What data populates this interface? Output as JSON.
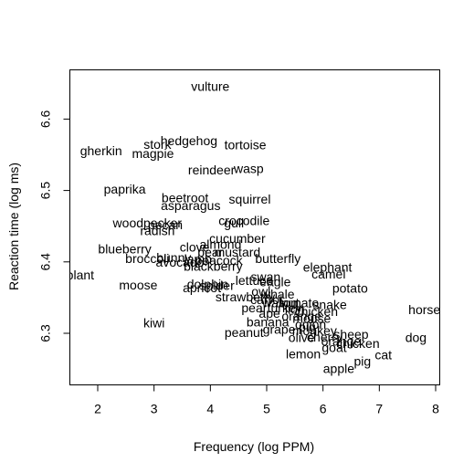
{
  "chart_data": {
    "type": "scatter",
    "title": "",
    "xlabel": "Frequency (log PPM)",
    "ylabel": "Reaction time (log ms)",
    "xlim": [
      1.5,
      8.0
    ],
    "ylim": [
      6.22,
      6.67
    ],
    "xticks": [
      "2",
      "3",
      "4",
      "5",
      "6",
      "7",
      "8"
    ],
    "yticks": [
      "6.3",
      "6.4",
      "6.5",
      "6.6"
    ],
    "marker": "word-text",
    "grid": false,
    "points": [
      {
        "label": "vulture",
        "x": 4.0,
        "y": 6.646
      },
      {
        "label": "hedgehog",
        "x": 3.62,
        "y": 6.57
      },
      {
        "label": "stork",
        "x": 3.06,
        "y": 6.565
      },
      {
        "label": "gherkin",
        "x": 2.06,
        "y": 6.556
      },
      {
        "label": "magpie",
        "x": 2.98,
        "y": 6.552
      },
      {
        "label": "tortoise",
        "x": 4.62,
        "y": 6.564
      },
      {
        "label": "reindeer",
        "x": 4.02,
        "y": 6.529
      },
      {
        "label": "wasp",
        "x": 4.68,
        "y": 6.531
      },
      {
        "label": "paprika",
        "x": 2.48,
        "y": 6.502
      },
      {
        "label": "beetroot",
        "x": 3.55,
        "y": 6.49
      },
      {
        "label": "squirrel",
        "x": 4.7,
        "y": 6.488
      },
      {
        "label": "asparagus",
        "x": 3.65,
        "y": 6.479
      },
      {
        "label": "crocodile",
        "x": 4.6,
        "y": 6.458
      },
      {
        "label": "gull",
        "x": 4.42,
        "y": 6.455
      },
      {
        "label": "woodpecker",
        "x": 2.88,
        "y": 6.455
      },
      {
        "label": "pecan",
        "x": 3.2,
        "y": 6.452
      },
      {
        "label": "radish",
        "x": 3.06,
        "y": 6.444
      },
      {
        "label": "cucumber",
        "x": 4.48,
        "y": 6.433
      },
      {
        "label": "almond",
        "x": 4.18,
        "y": 6.425
      },
      {
        "label": "clove",
        "x": 3.72,
        "y": 6.421
      },
      {
        "label": "blueberry",
        "x": 2.48,
        "y": 6.418
      },
      {
        "label": "pear",
        "x": 4.0,
        "y": 6.414
      },
      {
        "label": "mustard",
        "x": 4.48,
        "y": 6.414
      },
      {
        "label": "broccoli",
        "x": 2.88,
        "y": 6.405
      },
      {
        "label": "bunny",
        "x": 3.35,
        "y": 6.406
      },
      {
        "label": "lamb",
        "x": 3.78,
        "y": 6.404
      },
      {
        "label": "peacock",
        "x": 4.15,
        "y": 6.402
      },
      {
        "label": "butterfly",
        "x": 5.2,
        "y": 6.405
      },
      {
        "label": "avocado",
        "x": 3.46,
        "y": 6.4
      },
      {
        "label": "blackberry",
        "x": 4.05,
        "y": 6.394
      },
      {
        "label": "elephant",
        "x": 6.08,
        "y": 6.393
      },
      {
        "label": "camel",
        "x": 6.1,
        "y": 6.383
      },
      {
        "label": "eggplant",
        "x": 1.5,
        "y": 6.382
      },
      {
        "label": "swan",
        "x": 4.98,
        "y": 6.379
      },
      {
        "label": "lettuce",
        "x": 4.78,
        "y": 6.374
      },
      {
        "label": "eagle",
        "x": 5.15,
        "y": 6.372
      },
      {
        "label": "moose",
        "x": 2.72,
        "y": 6.368
      },
      {
        "label": "dolphin",
        "x": 3.95,
        "y": 6.369
      },
      {
        "label": "spider",
        "x": 4.12,
        "y": 6.367
      },
      {
        "label": "apricot",
        "x": 3.85,
        "y": 6.364
      },
      {
        "label": "potato",
        "x": 6.48,
        "y": 6.363
      },
      {
        "label": "owl",
        "x": 4.9,
        "y": 6.359
      },
      {
        "label": "whale",
        "x": 5.2,
        "y": 6.355
      },
      {
        "label": "strawberry",
        "x": 4.62,
        "y": 6.351
      },
      {
        "label": "carrot",
        "x": 5.0,
        "y": 6.347
      },
      {
        "label": "walnut",
        "x": 5.25,
        "y": 6.343
      },
      {
        "label": "tomato",
        "x": 5.58,
        "y": 6.343
      },
      {
        "label": "snake",
        "x": 6.12,
        "y": 6.34
      },
      {
        "label": "pear",
        "x": 4.78,
        "y": 6.336
      },
      {
        "label": "turkey",
        "x": 5.32,
        "y": 6.336
      },
      {
        "label": "lion",
        "x": 5.5,
        "y": 6.334
      },
      {
        "label": "horse",
        "x": 7.8,
        "y": 6.333
      },
      {
        "label": "chicken",
        "x": 5.88,
        "y": 6.331
      },
      {
        "label": "ape",
        "x": 5.05,
        "y": 6.328
      },
      {
        "label": "orange",
        "x": 5.62,
        "y": 6.324
      },
      {
        "label": "mouse",
        "x": 5.8,
        "y": 6.321
      },
      {
        "label": "kiwi",
        "x": 3.0,
        "y": 6.315
      },
      {
        "label": "banana",
        "x": 5.02,
        "y": 6.316
      },
      {
        "label": "onion",
        "x": 5.78,
        "y": 6.313
      },
      {
        "label": "pig",
        "x": 5.72,
        "y": 6.309
      },
      {
        "label": "grape",
        "x": 5.22,
        "y": 6.306
      },
      {
        "label": "monkey",
        "x": 5.85,
        "y": 6.304
      },
      {
        "label": "peanut",
        "x": 4.6,
        "y": 6.301
      },
      {
        "label": "sheep",
        "x": 6.5,
        "y": 6.299
      },
      {
        "label": "dog",
        "x": 7.65,
        "y": 6.294
      },
      {
        "label": "olive",
        "x": 5.62,
        "y": 6.294
      },
      {
        "label": "cherry",
        "x": 6.03,
        "y": 6.295
      },
      {
        "label": "orange",
        "x": 6.32,
        "y": 6.289
      },
      {
        "label": "chicken",
        "x": 6.62,
        "y": 6.286
      },
      {
        "label": "goat",
        "x": 6.2,
        "y": 6.28
      },
      {
        "label": "lemon",
        "x": 5.65,
        "y": 6.271
      },
      {
        "label": "cat",
        "x": 7.07,
        "y": 6.27
      },
      {
        "label": "pig",
        "x": 6.7,
        "y": 6.261
      },
      {
        "label": "apple",
        "x": 6.28,
        "y": 6.251
      }
    ]
  }
}
